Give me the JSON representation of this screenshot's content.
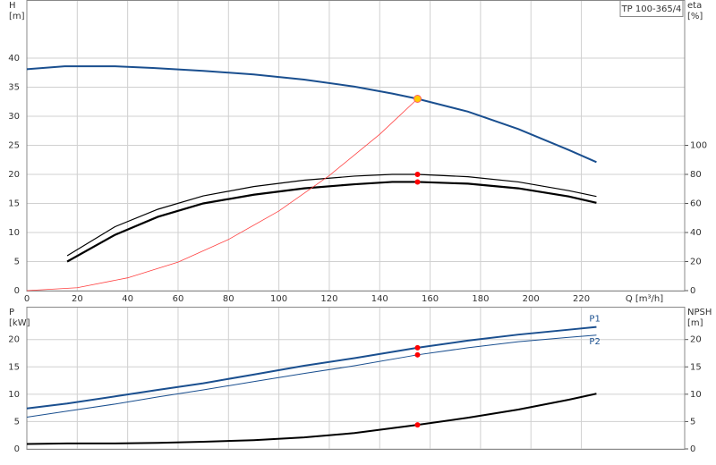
{
  "chart_data": [
    {
      "type": "line",
      "title": "TP 100-365/4",
      "xlabel": "Q [m³/h]",
      "ylabel": "H",
      "yunit": "[m]",
      "y2label": "eta",
      "y2unit": "[%]",
      "xlim": [
        0,
        261
      ],
      "xticks": [
        0,
        20,
        40,
        60,
        80,
        100,
        120,
        140,
        160,
        180,
        200,
        220
      ],
      "ylim": [
        0,
        50
      ],
      "yticks": [
        0,
        5,
        10,
        15,
        20,
        25,
        30,
        35,
        40
      ],
      "y2lim": [
        0,
        200
      ],
      "y2ticks": [
        0,
        20,
        40,
        60,
        80,
        100
      ],
      "grid": true,
      "series": [
        {
          "color": "#1a4f8f",
          "width": 2,
          "axis": "y",
          "x": [
            0,
            15,
            35,
            50,
            70,
            90,
            110,
            130,
            145,
            155,
            175,
            195,
            215,
            226
          ],
          "values": [
            38.1,
            38.6,
            38.6,
            38.3,
            37.8,
            37.2,
            36.3,
            35.1,
            33.9,
            33,
            30.8,
            27.8,
            24.2,
            22.1
          ]
        },
        {
          "color": "#000000",
          "width": 1.2,
          "axis": "y2",
          "x": [
            16,
            35,
            52,
            70,
            90,
            110,
            130,
            145,
            155,
            175,
            195,
            215,
            226
          ],
          "values": [
            24,
            44,
            56,
            65.2,
            71.6,
            76,
            78.8,
            80,
            80,
            78.4,
            74.8,
            68.8,
            64.8
          ]
        },
        {
          "color": "#000000",
          "width": 2.2,
          "axis": "y2",
          "x": [
            16,
            35,
            52,
            70,
            90,
            110,
            130,
            145,
            155,
            175,
            195,
            215,
            226
          ],
          "values": [
            20,
            38.4,
            50.8,
            60,
            66,
            70.4,
            73.2,
            74.8,
            74.8,
            73.6,
            70.4,
            64.8,
            60.4
          ]
        },
        {
          "color": "#ff4040",
          "width": 0.8,
          "axis": "y",
          "x": [
            0,
            20,
            40,
            60,
            80,
            100,
            120,
            140,
            155
          ],
          "values": [
            0,
            0.5,
            2.2,
            4.9,
            8.8,
            13.7,
            19.8,
            26.9,
            33
          ]
        }
      ],
      "markers": [
        {
          "x": 155,
          "y": 33,
          "axis": "y",
          "color": "#ffcc00"
        },
        {
          "x": 155,
          "y": 80,
          "axis": "y2",
          "color": "#ff0000"
        },
        {
          "x": 155,
          "y": 74.8,
          "axis": "y2",
          "color": "#ff0000"
        }
      ]
    },
    {
      "type": "line",
      "ylabel": "P",
      "yunit": "[kW]",
      "y2label": "NPSH",
      "y2unit": "[m]",
      "xlim": [
        0,
        261
      ],
      "ylim": [
        0,
        26
      ],
      "yticks": [
        0,
        5,
        10,
        15,
        20
      ],
      "y2lim": [
        0,
        26
      ],
      "y2ticks": [
        0,
        5,
        10,
        15,
        20
      ],
      "grid": true,
      "series": [
        {
          "name": "P1",
          "color": "#1a4f8f",
          "width": 2,
          "axis": "y",
          "x": [
            0,
            16,
            35,
            52,
            70,
            90,
            110,
            130,
            155,
            175,
            195,
            215,
            226
          ],
          "values": [
            7.4,
            8.3,
            9.6,
            10.8,
            12,
            13.6,
            15.2,
            16.6,
            18.5,
            19.8,
            20.9,
            21.8,
            22.3
          ]
        },
        {
          "name": "P2",
          "color": "#1a4f8f",
          "width": 1,
          "axis": "y",
          "x": [
            0,
            16,
            35,
            52,
            70,
            90,
            110,
            130,
            155,
            175,
            195,
            215,
            226
          ],
          "values": [
            5.8,
            6.9,
            8.2,
            9.5,
            10.8,
            12.3,
            13.8,
            15.2,
            17.2,
            18.5,
            19.6,
            20.4,
            20.8
          ]
        },
        {
          "color": "#000000",
          "width": 2,
          "axis": "y2",
          "x": [
            0,
            16,
            35,
            52,
            70,
            90,
            110,
            130,
            155,
            175,
            195,
            215,
            226
          ],
          "values": [
            0.9,
            1,
            1,
            1.1,
            1.3,
            1.6,
            2.1,
            2.9,
            4.4,
            5.7,
            7.2,
            9,
            10.1
          ]
        }
      ],
      "markers": [
        {
          "x": 155,
          "y": 18.5,
          "axis": "y",
          "color": "#ff0000"
        },
        {
          "x": 155,
          "y": 17.2,
          "axis": "y",
          "color": "#ff0000"
        },
        {
          "x": 155,
          "y": 4.4,
          "axis": "y2",
          "color": "#ff0000"
        }
      ]
    }
  ]
}
